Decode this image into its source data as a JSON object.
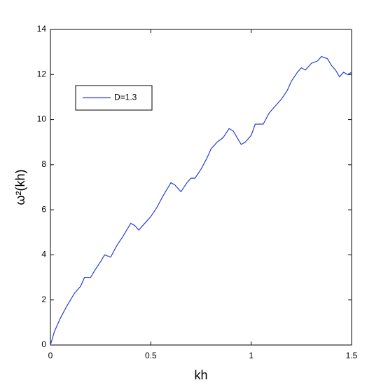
{
  "chart_data": {
    "type": "line",
    "xlabel": "kh",
    "ylabel": "ω²(kh)",
    "x": [
      0,
      0.02,
      0.05,
      0.08,
      0.1,
      0.12,
      0.15,
      0.17,
      0.2,
      0.22,
      0.25,
      0.27,
      0.3,
      0.33,
      0.36,
      0.4,
      0.42,
      0.44,
      0.47,
      0.5,
      0.53,
      0.56,
      0.6,
      0.62,
      0.65,
      0.68,
      0.7,
      0.72,
      0.75,
      0.78,
      0.8,
      0.83,
      0.86,
      0.89,
      0.91,
      0.93,
      0.95,
      0.97,
      1.0,
      1.02,
      1.04,
      1.06,
      1.09,
      1.12,
      1.15,
      1.18,
      1.2,
      1.23,
      1.25,
      1.27,
      1.3,
      1.33,
      1.35,
      1.38,
      1.4,
      1.42,
      1.44,
      1.46,
      1.48,
      1.5
    ],
    "series": [
      {
        "name": "D=1.3",
        "color": "#2a3fd4",
        "values": [
          0,
          0.6,
          1.2,
          1.7,
          2.0,
          2.3,
          2.6,
          3.0,
          3.0,
          3.3,
          3.7,
          4.0,
          3.9,
          4.4,
          4.8,
          5.4,
          5.3,
          5.1,
          5.4,
          5.7,
          6.1,
          6.6,
          7.2,
          7.1,
          6.8,
          7.2,
          7.4,
          7.4,
          7.8,
          8.3,
          8.7,
          9.0,
          9.2,
          9.6,
          9.5,
          9.2,
          8.9,
          9.0,
          9.3,
          9.8,
          9.8,
          9.8,
          10.3,
          10.6,
          10.9,
          11.3,
          11.7,
          12.1,
          12.3,
          12.2,
          12.5,
          12.6,
          12.8,
          12.7,
          12.4,
          12.2,
          11.9,
          12.1,
          12.0,
          12.1
        ]
      }
    ],
    "xlim": [
      0,
      1.5
    ],
    "ylim": [
      0,
      14
    ],
    "xticks": [
      0,
      0.5,
      1,
      1.5
    ],
    "yticks": [
      0,
      2,
      4,
      6,
      8,
      10,
      12,
      14
    ],
    "legend": "upper left",
    "grid": false
  }
}
